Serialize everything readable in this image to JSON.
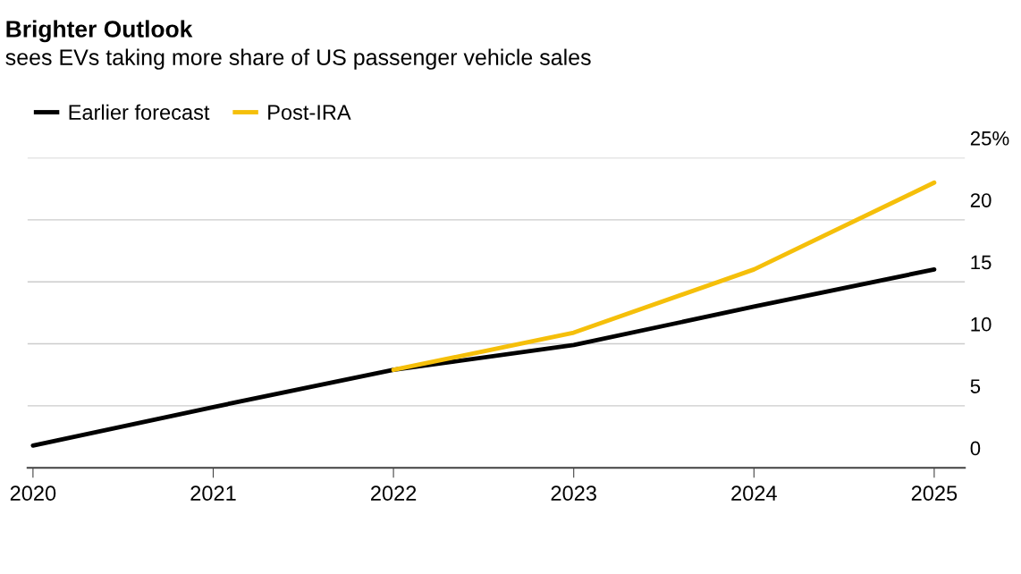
{
  "chart_data": {
    "type": "line",
    "title": "Brighter Outlook",
    "subtitle": "sees EVs taking more share of US passenger vehicle sales",
    "x": [
      2020,
      2021,
      2022,
      2023,
      2024,
      2025
    ],
    "series": [
      {
        "name": "Earlier forecast",
        "color": "#000000",
        "values": [
          1.8,
          4.9,
          7.9,
          9.9,
          13.0,
          16.0
        ]
      },
      {
        "name": "Post-IRA",
        "color": "#f5bf0a",
        "values": [
          null,
          null,
          7.9,
          10.9,
          16.0,
          23.0
        ]
      }
    ],
    "xlim": [
      2019.97,
      2025.17
    ],
    "xticks": [
      2020,
      2021,
      2022,
      2023,
      2024,
      2025
    ],
    "ylim": [
      0,
      25
    ],
    "yticks": [
      0,
      5,
      10,
      15,
      20,
      {
        "value": 25,
        "label": "25%"
      }
    ],
    "grid": "y",
    "legend": "top left",
    "line_style": "solid",
    "marker": "none"
  }
}
